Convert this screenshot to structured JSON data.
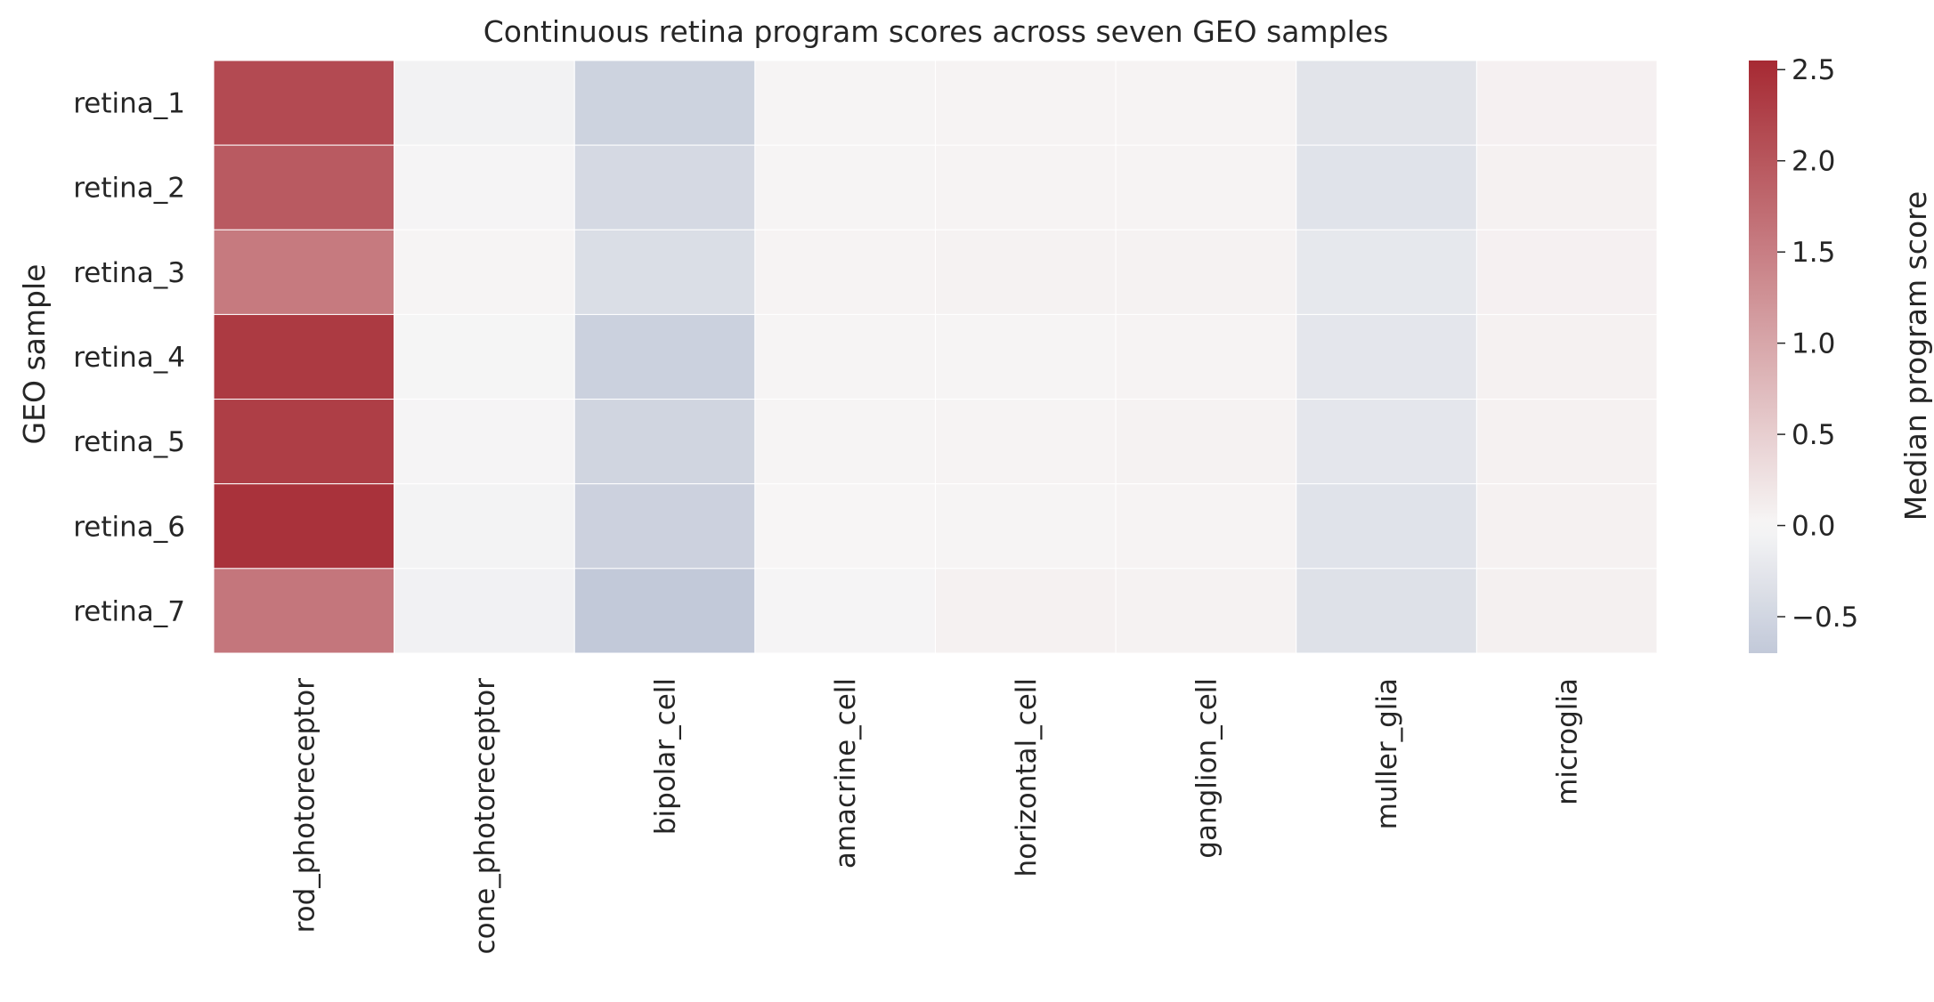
{
  "chart_data": {
    "type": "heatmap",
    "title": "Continuous retina program scores across seven GEO samples",
    "xlabel": "",
    "ylabel": "GEO sample",
    "rows": [
      "retina_1",
      "retina_2",
      "retina_3",
      "retina_4",
      "retina_5",
      "retina_6",
      "retina_7"
    ],
    "columns": [
      "rod_photoreceptor",
      "cone_photoreceptor",
      "bipolar_cell",
      "amacrine_cell",
      "horizontal_cell",
      "ganglion_cell",
      "muller_glia",
      "microglia"
    ],
    "values": [
      [
        2.15,
        -0.07,
        -0.55,
        0.02,
        0.04,
        0.04,
        -0.28,
        0.07
      ],
      [
        1.95,
        -0.03,
        -0.45,
        0.02,
        0.04,
        0.04,
        -0.3,
        0.06
      ],
      [
        1.55,
        0.03,
        -0.38,
        0.04,
        0.05,
        0.05,
        -0.22,
        0.07
      ],
      [
        2.35,
        -0.02,
        -0.58,
        0.02,
        0.03,
        0.04,
        -0.25,
        0.06
      ],
      [
        2.3,
        -0.03,
        -0.52,
        0.02,
        0.04,
        0.05,
        -0.25,
        0.06
      ],
      [
        2.45,
        -0.05,
        -0.57,
        0.01,
        0.03,
        0.04,
        -0.3,
        0.06
      ],
      [
        1.6,
        -0.08,
        -0.7,
        -0.03,
        0.06,
        0.05,
        -0.33,
        0.08
      ]
    ],
    "colorbar": {
      "label": "Median program score",
      "range": [
        -0.7,
        2.55
      ],
      "ticks": [
        2.5,
        2.0,
        1.5,
        1.0,
        0.5,
        0.0,
        -0.5
      ],
      "tick_labels": [
        "2.5",
        "2.0",
        "1.5",
        "1.0",
        "0.5",
        "0.0",
        "−0.5"
      ],
      "colormap": "diverging blue-white-red, centered at 0",
      "color_negative": "#c2c9d9",
      "color_zero": "#f7f6f6",
      "color_positive": "#a62a33"
    }
  }
}
